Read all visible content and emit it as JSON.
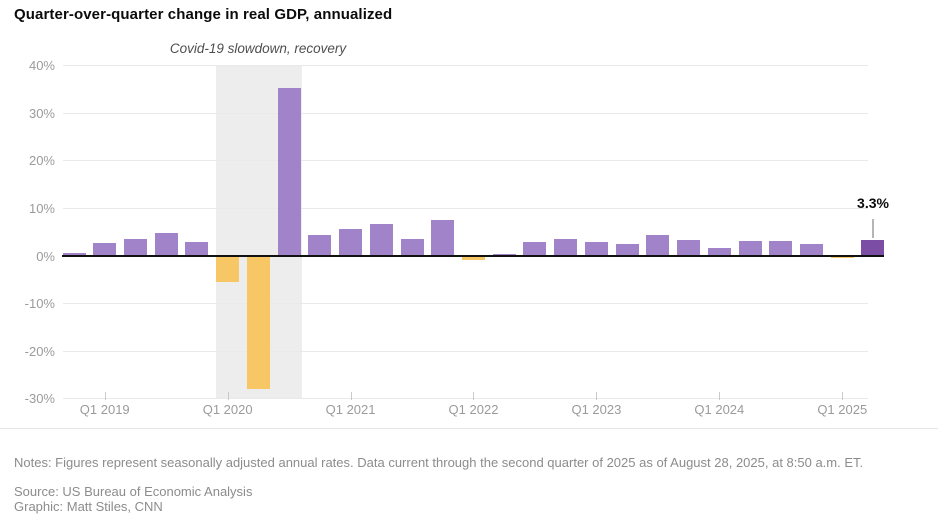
{
  "header": {
    "title": "Quarter-over-quarter change in real GDP, annualized"
  },
  "footer": {
    "notes": "Notes: Figures represent seasonally adjusted annual rates. Data current through the second quarter of 2025 as of August 28, 2025, at 8:50 a.m. ET.",
    "source": "Source: US Bureau of Economic Analysis",
    "credit": "Graphic: Matt Stiles, CNN"
  },
  "chart_data": {
    "type": "bar",
    "title": "Quarter-over-quarter change in real GDP, annualized",
    "unit": "%",
    "categories": [
      "Q4 2018",
      "Q1 2019",
      "Q2 2019",
      "Q3 2019",
      "Q4 2019",
      "Q1 2020",
      "Q2 2020",
      "Q3 2020",
      "Q4 2020",
      "Q1 2021",
      "Q2 2021",
      "Q3 2021",
      "Q4 2021",
      "Q1 2022",
      "Q2 2022",
      "Q3 2022",
      "Q4 2022",
      "Q1 2023",
      "Q2 2023",
      "Q3 2023",
      "Q4 2023",
      "Q1 2024",
      "Q2 2024",
      "Q3 2024",
      "Q4 2024",
      "Q1 2025",
      "Q2 2025"
    ],
    "values": [
      0.6,
      2.7,
      3.5,
      4.7,
      2.9,
      -5.5,
      -28.1,
      35.2,
      4.4,
      5.6,
      6.6,
      3.4,
      7.4,
      -1.0,
      0.3,
      2.9,
      3.4,
      2.8,
      2.4,
      4.4,
      3.2,
      1.6,
      3.0,
      3.1,
      2.4,
      -0.5,
      3.3
    ],
    "ylim": [
      -30,
      40
    ],
    "grid": true,
    "y_ticks": [
      {
        "label": "40%",
        "value": 40
      },
      {
        "label": "30%",
        "value": 30
      },
      {
        "label": "20%",
        "value": 20
      },
      {
        "label": "10%",
        "value": 10
      },
      {
        "label": "0%",
        "value": 0
      },
      {
        "label": "-10%",
        "value": -10
      },
      {
        "label": "-20%",
        "value": -20
      },
      {
        "label": "-30%",
        "value": -30
      }
    ],
    "x_ticks": [
      {
        "label": "Q1 2019",
        "index": 1
      },
      {
        "label": "Q1 2020",
        "index": 5
      },
      {
        "label": "Q1 2021",
        "index": 9
      },
      {
        "label": "Q1 2022",
        "index": 13
      },
      {
        "label": "Q1 2023",
        "index": 17
      },
      {
        "label": "Q1 2024",
        "index": 21
      },
      {
        "label": "Q1 2025",
        "index": 25
      }
    ],
    "highlight_band": {
      "label": "Covid-19 slowdown, recovery",
      "start_category": "Q1 2020",
      "end_category": "Q3 2020",
      "start_index": 5,
      "end_index": 7
    },
    "latest": {
      "category": "Q2 2025",
      "value": 3.3,
      "label": "3.3%"
    },
    "colors": {
      "positive": "#a183c9",
      "negative": "#f7c766",
      "latest": "#7b4da5",
      "band": "#ededed",
      "grid": "#e9e9e9",
      "zero_axis": "#111111",
      "tick_label": "#9b9b9b",
      "annotation_text": "#4f4f4f",
      "note_text": "#8c8c8c"
    }
  }
}
